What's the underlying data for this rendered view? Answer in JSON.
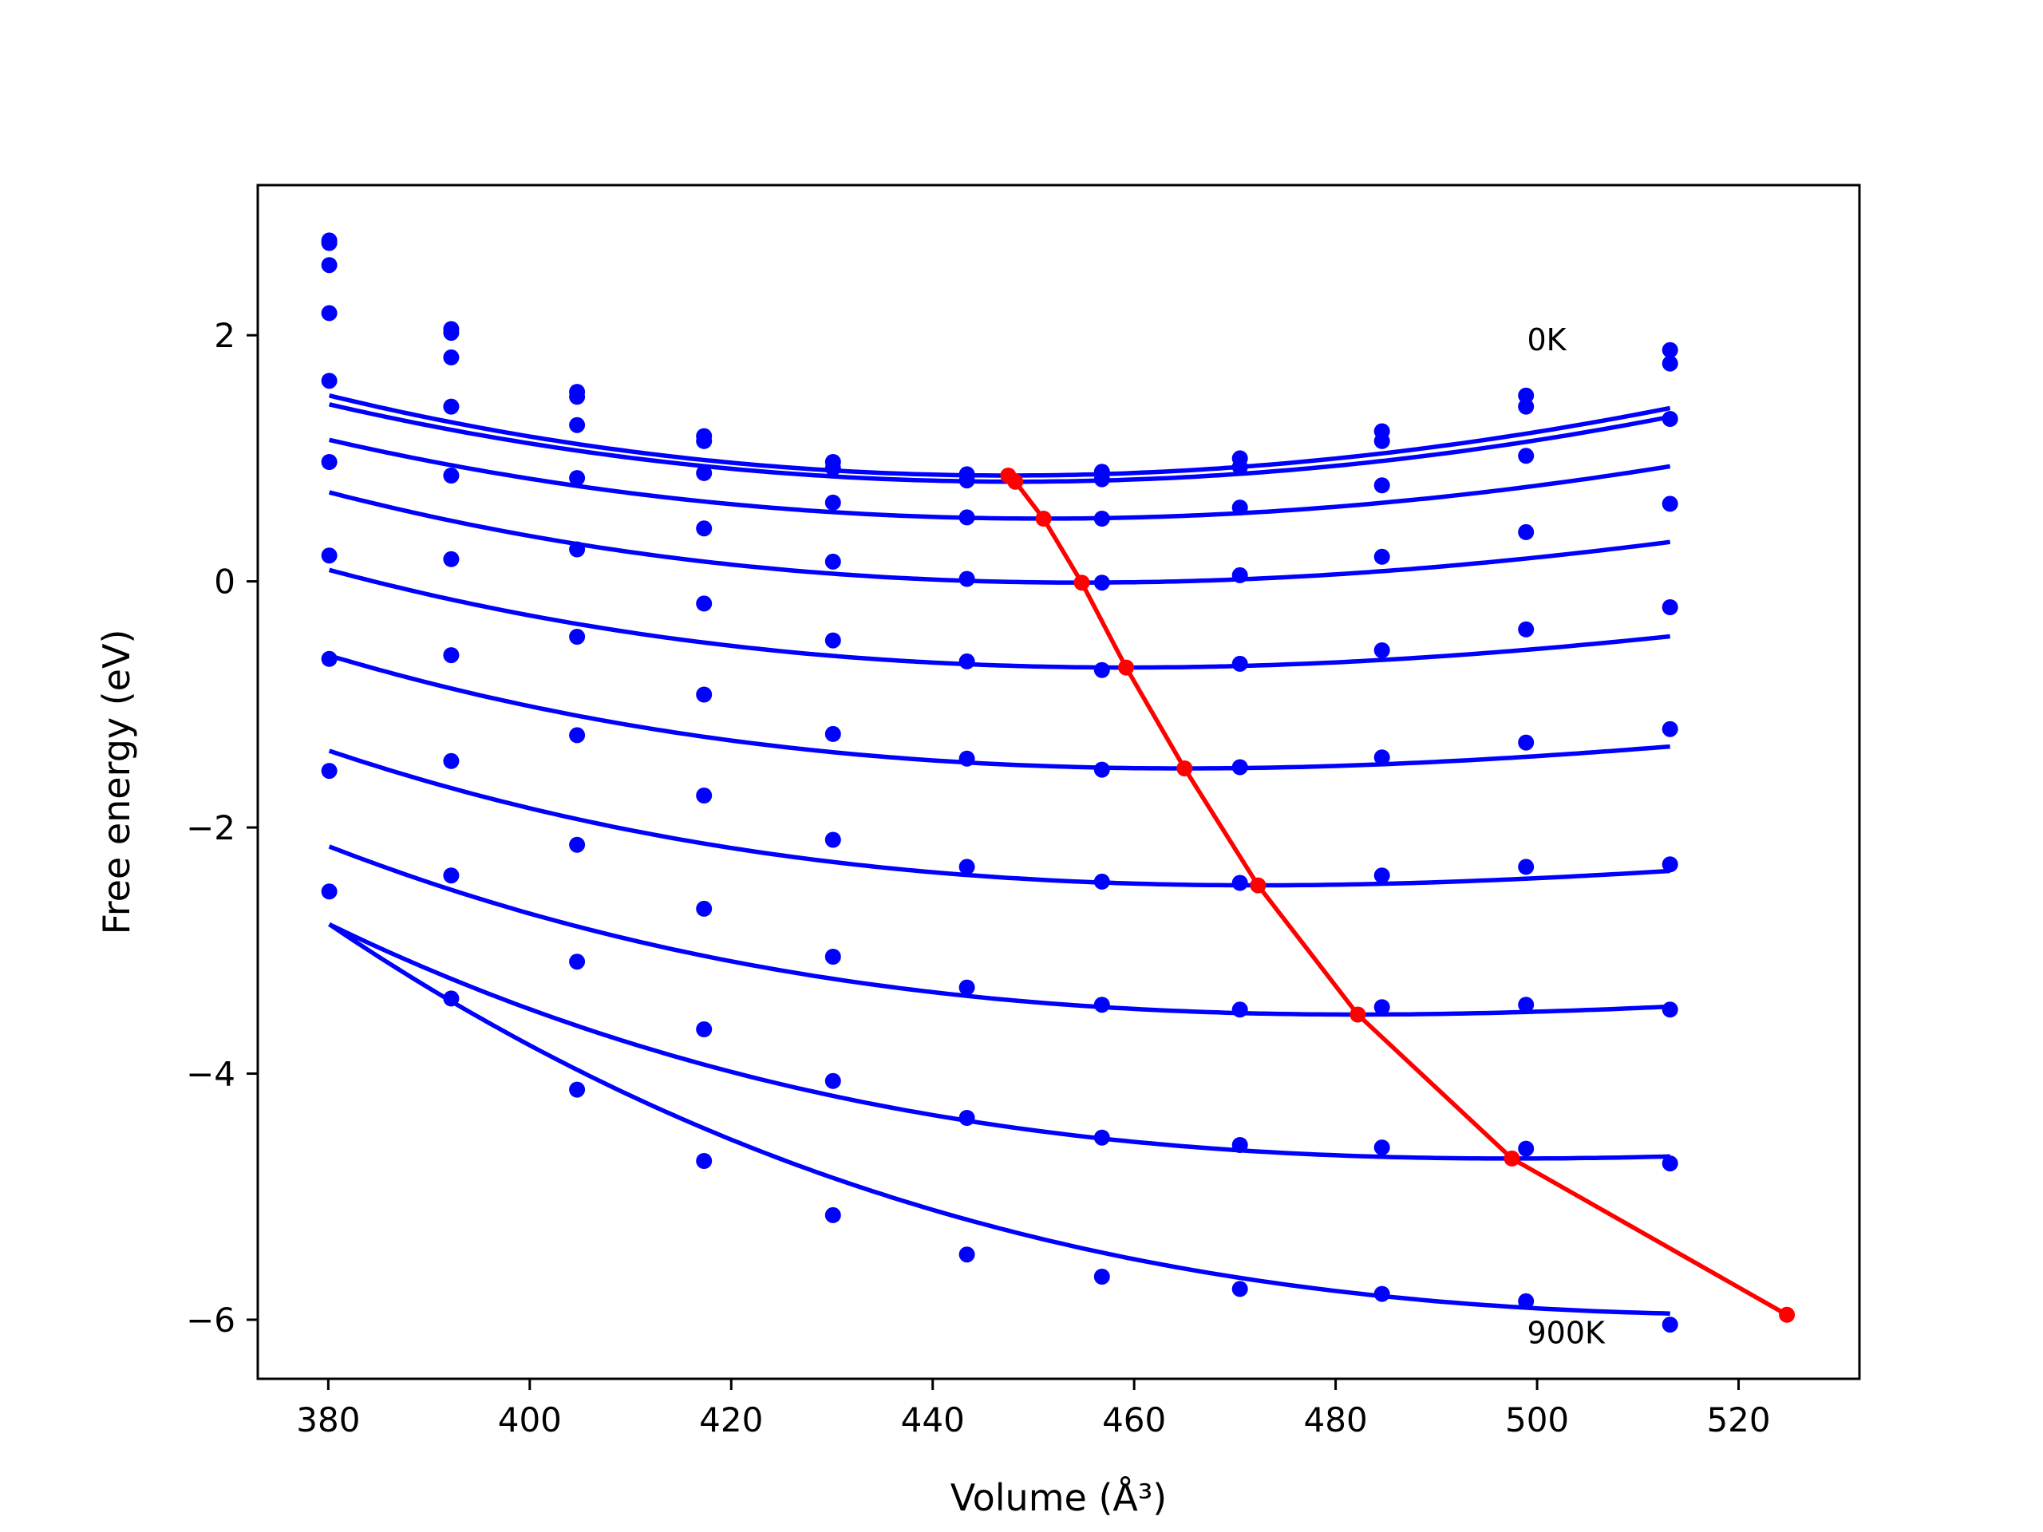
{
  "chart_data": {
    "type": "line",
    "xlabel": "Volume (Å³)",
    "ylabel": "Free energy (eV)",
    "xlim": [
      373,
      532
    ],
    "ylim": [
      -6.48,
      3.22
    ],
    "x_ticks": [
      380,
      400,
      420,
      440,
      460,
      480,
      500,
      520
    ],
    "y_ticks": [
      2,
      0,
      -2,
      -4,
      -6
    ],
    "x_tick_labels": [
      "380",
      "400",
      "420",
      "440",
      "460",
      "480",
      "500",
      "520"
    ],
    "y_tick_labels": [
      "2",
      "0",
      "−2",
      "−4",
      "−6"
    ],
    "grid": false,
    "annotations": [
      {
        "text": "0K",
        "x": 499,
        "y": 1.97
      },
      {
        "text": "900K",
        "x": 499,
        "y": -6.1
      }
    ],
    "colors": {
      "curves": "#0000ff",
      "minimum_line": "#ff0000"
    },
    "volumes": [
      380.1,
      392.2,
      404.7,
      417.3,
      430.1,
      443.4,
      456.8,
      470.5,
      484.6,
      498.9,
      513.2
    ],
    "series": [
      {
        "label": "0K",
        "values": [
          2.77,
          2.05,
          1.54,
          1.18,
          0.97,
          0.87,
          0.89,
          1.0,
          1.22,
          1.51,
          1.88
        ],
        "fit": {
          "vmin": 447.5,
          "emin": 0.86,
          "k": 0.000135,
          "c": 1.2e-07
        }
      },
      {
        "values": [
          2.75,
          2.02,
          1.5,
          1.14,
          0.92,
          0.82,
          0.83,
          0.93,
          1.14,
          1.42,
          1.77
        ],
        "fit": {
          "vmin": 448.2,
          "emin": 0.81,
          "k": 0.00013,
          "c": 8e-08
        }
      },
      {
        "values": [
          2.57,
          1.82,
          1.27,
          0.88,
          0.64,
          0.52,
          0.51,
          0.6,
          0.78,
          1.02,
          1.32
        ],
        "fit": {
          "vmin": 451.0,
          "emin": 0.51,
          "k": 0.000118,
          "c": 1.3e-07
        }
      },
      {
        "values": [
          2.18,
          1.42,
          0.84,
          0.43,
          0.16,
          0.02,
          -0.01,
          0.05,
          0.2,
          0.4,
          0.63
        ],
        "fit": {
          "vmin": 454.8,
          "emin": -0.01,
          "k": 0.000112,
          "c": 2.6e-07
        }
      },
      {
        "values": [
          1.63,
          0.86,
          0.26,
          -0.18,
          -0.48,
          -0.65,
          -0.72,
          -0.67,
          -0.56,
          -0.39,
          -0.21
        ],
        "fit": {
          "vmin": 459.2,
          "emin": -0.7,
          "k": 0.000103,
          "c": 3e-07
        }
      },
      {
        "values": [
          0.97,
          0.18,
          -0.45,
          -0.92,
          -1.24,
          -1.44,
          -1.53,
          -1.51,
          -1.43,
          -1.31,
          -1.2
        ],
        "fit": {
          "vmin": 465.0,
          "emin": -1.52,
          "k": 9.5e-05,
          "c": 3.8e-07
        }
      },
      {
        "values": [
          0.21,
          -0.6,
          -1.25,
          -1.74,
          -2.1,
          -2.32,
          -2.44,
          -2.45,
          -2.39,
          -2.32,
          -2.3
        ],
        "fit": {
          "vmin": 472.3,
          "emin": -2.47,
          "k": 8.8e-05,
          "c": 4.4e-07
        }
      },
      {
        "values": [
          -0.63,
          -1.46,
          -2.14,
          -2.66,
          -3.05,
          -3.3,
          -3.44,
          -3.48,
          -3.46,
          -3.44,
          -3.48
        ],
        "fit": {
          "vmin": 482.2,
          "emin": -3.52,
          "k": 8.2e-05,
          "c": 4.8e-07
        }
      },
      {
        "values": [
          -1.54,
          -2.39,
          -3.09,
          -3.64,
          -4.06,
          -4.36,
          -4.52,
          -4.58,
          -4.6,
          -4.61,
          -4.73
        ],
        "fit": {
          "vmin": 497.5,
          "emin": -4.69,
          "k": 7.7e-05,
          "c": 5.2e-07
        }
      },
      {
        "label": "900K",
        "values": [
          -2.52,
          -3.39,
          -4.13,
          -4.71,
          -5.15,
          -5.47,
          -5.65,
          -5.75,
          -5.79,
          -5.85,
          -6.04
        ],
        "fit": {
          "vmin": 524.8,
          "emin": -5.96,
          "k": 7.2e-05,
          "c": 5.5e-07
        }
      }
    ],
    "minimum_line": {
      "x": [
        447.5,
        448.2,
        451.0,
        454.8,
        459.2,
        465.0,
        472.3,
        482.2,
        497.5,
        524.8
      ],
      "y": [
        0.86,
        0.81,
        0.51,
        -0.01,
        -0.7,
        -1.52,
        -2.47,
        -3.52,
        -4.69,
        -5.96
      ]
    }
  }
}
